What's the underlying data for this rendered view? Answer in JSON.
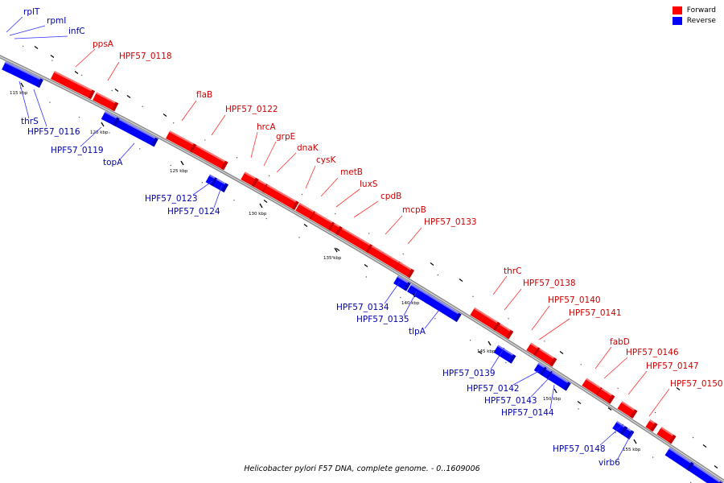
{
  "caption": "Helicobacter pylori F57 DNA, complete genome. - 0..1609006",
  "legend": [
    {
      "label": "Forward",
      "color": "#ff0000"
    },
    {
      "label": "Reverse",
      "color": "#0000ff"
    }
  ],
  "colors": {
    "forward": "#ff0000",
    "reverse": "#0000ff",
    "forward_label": "#cc0000",
    "reverse_label": "#0000aa"
  },
  "kbp_ticks": [
    "115 kbp",
    "120 kbp",
    "125 kbp",
    "130 kbp",
    "135 kbp",
    "140 kbp",
    "145 kbp",
    "150 kbp",
    "155 kbp"
  ],
  "forward_genes": [
    "ppsA",
    "HPF57_0118",
    "flaB",
    "HPF57_0122",
    "hrcA",
    "grpE",
    "dnaK",
    "cysK",
    "metB",
    "luxS",
    "cpdB",
    "mcpB",
    "HPF57_0133",
    "thrC",
    "HPF57_0138",
    "HPF57_0140",
    "HPF57_0141",
    "fabD",
    "HPF57_0146",
    "HPF57_0147",
    "HPF57_0150"
  ],
  "reverse_genes": [
    "rplT",
    "rpmI",
    "infC",
    "thrS",
    "HPF57_0116",
    "HPF57_0119",
    "topA",
    "HPF57_0123",
    "HPF57_0124",
    "HPF57_0134",
    "HPF57_0135",
    "tlpA",
    "HPF57_0139",
    "HPF57_0142",
    "HPF57_0143",
    "HPF57_0144",
    "HPF57_0148",
    "virb6"
  ]
}
